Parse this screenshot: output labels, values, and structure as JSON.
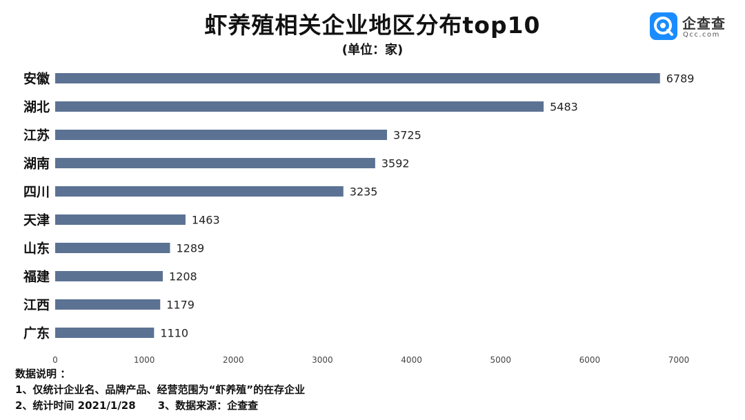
{
  "chart_data": {
    "type": "bar",
    "orientation": "horizontal",
    "title": "虾养殖相关企业地区分布top10",
    "subtitle": "(单位：家)",
    "categories": [
      "安徽",
      "湖北",
      "江苏",
      "湖南",
      "四川",
      "天津",
      "山东",
      "福建",
      "江西",
      "广东"
    ],
    "values": [
      6789,
      5483,
      3725,
      3592,
      3235,
      1463,
      1289,
      1208,
      1179,
      1110
    ],
    "data_labels": [
      "6789",
      "5483",
      "3725",
      "3592",
      "3235",
      "1463",
      "1289",
      "1208",
      "1179",
      "1110"
    ],
    "x_ticks": [
      0,
      1000,
      2000,
      3000,
      4000,
      5000,
      6000,
      7000
    ],
    "x_tick_labels": [
      "0",
      "1000",
      "2000",
      "3000",
      "4000",
      "5000",
      "6000",
      "7000"
    ],
    "xlim": [
      0,
      7000
    ],
    "grid": false,
    "legend": "none",
    "bar_color": "#5b7293"
  },
  "logo": {
    "name": "企查查",
    "domain": "Qcc.com",
    "color": "#1a8cff"
  },
  "notes": {
    "heading": "数据说明 ：",
    "line1": "1、仅统计企业名、品牌产品、经营范围为“虾养殖”的在存企业",
    "line2a": "2、统计时间  2021/1/28",
    "line2b": "3、数据来源：企查查"
  }
}
